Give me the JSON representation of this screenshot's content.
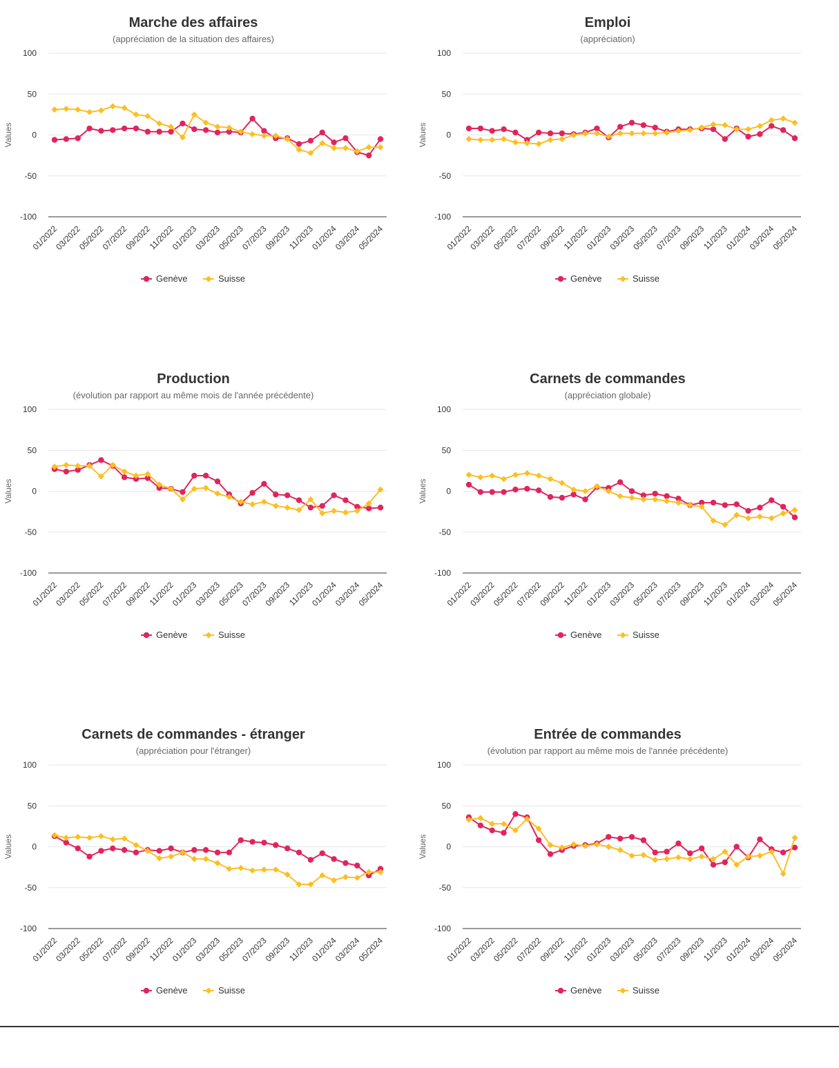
{
  "ylabel": "Values",
  "colors": {
    "geneve": "#e0245e",
    "suisse": "#fbbf24"
  },
  "chart_data": [
    {
      "type": "line",
      "title": "Marche des affaires",
      "subtitle": "(appréciation de la situation des affaires)",
      "ylabel": "Values",
      "ylim": [
        -100,
        100
      ],
      "yticks": [
        100,
        50,
        0,
        -50,
        -100
      ],
      "x": [
        "01/2022",
        "02/2022",
        "03/2022",
        "04/2022",
        "05/2022",
        "06/2022",
        "07/2022",
        "08/2022",
        "09/2022",
        "10/2022",
        "11/2022",
        "12/2022",
        "01/2023",
        "02/2023",
        "03/2023",
        "04/2023",
        "05/2023",
        "06/2023",
        "07/2023",
        "08/2023",
        "09/2023",
        "10/2023",
        "11/2023",
        "12/2023",
        "01/2024",
        "02/2024",
        "03/2024",
        "04/2024",
        "05/2024"
      ],
      "xticks": [
        "01/2022",
        "03/2022",
        "05/2022",
        "07/2022",
        "09/2022",
        "11/2022",
        "01/2023",
        "03/2023",
        "05/2023",
        "07/2023",
        "09/2023",
        "11/2023",
        "01/2024",
        "03/2024",
        "05/2024"
      ],
      "legend_position": "bottom",
      "series": [
        {
          "name": "Genève",
          "marker": "circle",
          "values": [
            -6,
            -5,
            -4,
            8,
            5,
            6,
            8,
            8,
            4,
            4,
            4,
            14,
            7,
            6,
            3,
            4,
            3,
            20,
            5,
            -4,
            -4,
            -11,
            -7,
            3,
            -9,
            -4,
            -21,
            -25,
            -5
          ]
        },
        {
          "name": "Suisse",
          "marker": "diamond",
          "values": [
            31,
            32,
            31,
            28,
            30,
            35,
            33,
            25,
            23,
            14,
            10,
            -3,
            25,
            15,
            10,
            9,
            4,
            1,
            -1,
            -1,
            -5,
            -18,
            -22,
            -10,
            -16,
            -16,
            -20,
            -15,
            -15
          ]
        }
      ]
    },
    {
      "type": "line",
      "title": "Emploi",
      "subtitle": "(appréciation)",
      "ylabel": "Values",
      "ylim": [
        -100,
        100
      ],
      "yticks": [
        100,
        50,
        0,
        -50,
        -100
      ],
      "x": [
        "01/2022",
        "02/2022",
        "03/2022",
        "04/2022",
        "05/2022",
        "06/2022",
        "07/2022",
        "08/2022",
        "09/2022",
        "10/2022",
        "11/2022",
        "12/2022",
        "01/2023",
        "02/2023",
        "03/2023",
        "04/2023",
        "05/2023",
        "06/2023",
        "07/2023",
        "08/2023",
        "09/2023",
        "10/2023",
        "11/2023",
        "12/2023",
        "01/2024",
        "02/2024",
        "03/2024",
        "04/2024",
        "05/2024"
      ],
      "xticks": [
        "01/2022",
        "03/2022",
        "05/2022",
        "07/2022",
        "09/2022",
        "11/2022",
        "01/2023",
        "03/2023",
        "05/2023",
        "07/2023",
        "09/2023",
        "11/2023",
        "01/2024",
        "03/2024",
        "05/2024"
      ],
      "legend_position": "bottom",
      "series": [
        {
          "name": "Genève",
          "marker": "circle",
          "values": [
            8,
            8,
            5,
            7,
            3,
            -6,
            3,
            2,
            2,
            1,
            3,
            8,
            -3,
            10,
            15,
            12,
            9,
            4,
            7,
            7,
            8,
            7,
            -5,
            8,
            -2,
            1,
            11,
            6,
            -4
          ]
        },
        {
          "name": "Suisse",
          "marker": "diamond",
          "values": [
            -5,
            -6,
            -6,
            -5,
            -9,
            -10,
            -11,
            -6,
            -5,
            0,
            2,
            2,
            -2,
            2,
            2,
            2,
            2,
            3,
            5,
            6,
            9,
            13,
            12,
            7,
            7,
            11,
            18,
            20,
            15
          ]
        }
      ]
    },
    {
      "type": "line",
      "title": "Production",
      "subtitle": "(évolution par rapport au même mois de l'année précédente)",
      "ylabel": "Values",
      "ylim": [
        -100,
        100
      ],
      "yticks": [
        100,
        50,
        0,
        -50,
        -100
      ],
      "x": [
        "01/2022",
        "02/2022",
        "03/2022",
        "04/2022",
        "05/2022",
        "06/2022",
        "07/2022",
        "08/2022",
        "09/2022",
        "10/2022",
        "11/2022",
        "12/2022",
        "01/2023",
        "02/2023",
        "03/2023",
        "04/2023",
        "05/2023",
        "06/2023",
        "07/2023",
        "08/2023",
        "09/2023",
        "10/2023",
        "11/2023",
        "12/2023",
        "01/2024",
        "02/2024",
        "03/2024",
        "04/2024",
        "05/2024"
      ],
      "xticks": [
        "01/2022",
        "03/2022",
        "05/2022",
        "07/2022",
        "09/2022",
        "11/2022",
        "01/2023",
        "03/2023",
        "05/2023",
        "07/2023",
        "09/2023",
        "11/2023",
        "01/2024",
        "03/2024",
        "05/2024"
      ],
      "legend_position": "bottom",
      "series": [
        {
          "name": "Genève",
          "marker": "circle",
          "values": [
            27,
            24,
            26,
            32,
            38,
            31,
            17,
            15,
            16,
            4,
            3,
            -1,
            19,
            19,
            12,
            -4,
            -15,
            -2,
            9,
            -4,
            -5,
            -11,
            -20,
            -18,
            -5,
            -11,
            -19,
            -21,
            -20
          ]
        },
        {
          "name": "Suisse",
          "marker": "diamond",
          "values": [
            30,
            32,
            31,
            31,
            18,
            32,
            24,
            19,
            21,
            8,
            3,
            -10,
            3,
            4,
            -3,
            -7,
            -13,
            -16,
            -13,
            -18,
            -20,
            -23,
            -10,
            -27,
            -24,
            -26,
            -24,
            -15,
            2
          ]
        }
      ]
    },
    {
      "type": "line",
      "title": "Carnets de commandes",
      "subtitle": "(appréciation globale)",
      "ylabel": "Values",
      "ylim": [
        -100,
        100
      ],
      "yticks": [
        100,
        50,
        0,
        -50,
        -100
      ],
      "x": [
        "01/2022",
        "02/2022",
        "03/2022",
        "04/2022",
        "05/2022",
        "06/2022",
        "07/2022",
        "08/2022",
        "09/2022",
        "10/2022",
        "11/2022",
        "12/2022",
        "01/2023",
        "02/2023",
        "03/2023",
        "04/2023",
        "05/2023",
        "06/2023",
        "07/2023",
        "08/2023",
        "09/2023",
        "10/2023",
        "11/2023",
        "12/2023",
        "01/2024",
        "02/2024",
        "03/2024",
        "04/2024",
        "05/2024"
      ],
      "xticks": [
        "01/2022",
        "03/2022",
        "05/2022",
        "07/2022",
        "09/2022",
        "11/2022",
        "01/2023",
        "03/2023",
        "05/2023",
        "07/2023",
        "09/2023",
        "11/2023",
        "01/2024",
        "03/2024",
        "05/2024"
      ],
      "legend_position": "bottom",
      "series": [
        {
          "name": "Genève",
          "marker": "circle",
          "values": [
            8,
            -1,
            -1,
            -1,
            2,
            3,
            1,
            -7,
            -8,
            -4,
            -10,
            5,
            4,
            11,
            0,
            -5,
            -3,
            -6,
            -9,
            -17,
            -14,
            -14,
            -17,
            -16,
            -24,
            -20,
            -11,
            -19,
            -32
          ]
        },
        {
          "name": "Suisse",
          "marker": "diamond",
          "values": [
            20,
            17,
            19,
            15,
            20,
            22,
            19,
            15,
            10,
            2,
            0,
            6,
            0,
            -6,
            -8,
            -10,
            -10,
            -12,
            -14,
            -17,
            -19,
            -36,
            -41,
            -29,
            -33,
            -31,
            -33,
            -27,
            -23
          ]
        }
      ]
    },
    {
      "type": "line",
      "title": "Carnets de commandes - étranger",
      "subtitle": "(appréciation pour l'étranger)",
      "ylabel": "Values",
      "ylim": [
        -100,
        100
      ],
      "yticks": [
        100,
        50,
        0,
        -50,
        -100
      ],
      "x": [
        "01/2022",
        "02/2022",
        "03/2022",
        "04/2022",
        "05/2022",
        "06/2022",
        "07/2022",
        "08/2022",
        "09/2022",
        "10/2022",
        "11/2022",
        "12/2022",
        "01/2023",
        "02/2023",
        "03/2023",
        "04/2023",
        "05/2023",
        "06/2023",
        "07/2023",
        "08/2023",
        "09/2023",
        "10/2023",
        "11/2023",
        "12/2023",
        "01/2024",
        "02/2024",
        "03/2024",
        "04/2024",
        "05/2024"
      ],
      "xticks": [
        "01/2022",
        "03/2022",
        "05/2022",
        "07/2022",
        "09/2022",
        "11/2022",
        "01/2023",
        "03/2023",
        "05/2023",
        "07/2023",
        "09/2023",
        "11/2023",
        "01/2024",
        "03/2024",
        "05/2024"
      ],
      "legend_position": "bottom",
      "series": [
        {
          "name": "Genève",
          "marker": "circle",
          "values": [
            13,
            5,
            -2,
            -12,
            -5,
            -2,
            -4,
            -7,
            -4,
            -5,
            -2,
            -7,
            -4,
            -4,
            -7,
            -7,
            8,
            6,
            5,
            2,
            -2,
            -7,
            -16,
            -8,
            -15,
            -20,
            -23,
            -35,
            -27
          ]
        },
        {
          "name": "Suisse",
          "marker": "diamond",
          "values": [
            14,
            11,
            12,
            11,
            13,
            9,
            10,
            2,
            -5,
            -14,
            -12,
            -7,
            -15,
            -15,
            -20,
            -27,
            -26,
            -29,
            -28,
            -28,
            -34,
            -46,
            -46,
            -35,
            -41,
            -37,
            -38,
            -31,
            -31
          ]
        }
      ]
    },
    {
      "type": "line",
      "title": "Entrée de commandes",
      "subtitle": "(évolution par rapport au même mois de l'année précédente)",
      "ylabel": "Values",
      "ylim": [
        -100,
        100
      ],
      "yticks": [
        100,
        50,
        0,
        -50,
        -100
      ],
      "x": [
        "01/2022",
        "02/2022",
        "03/2022",
        "04/2022",
        "05/2022",
        "06/2022",
        "07/2022",
        "08/2022",
        "09/2022",
        "10/2022",
        "11/2022",
        "12/2022",
        "01/2023",
        "02/2023",
        "03/2023",
        "04/2023",
        "05/2023",
        "06/2023",
        "07/2023",
        "08/2023",
        "09/2023",
        "10/2023",
        "11/2023",
        "12/2023",
        "01/2024",
        "02/2024",
        "03/2024",
        "04/2024",
        "05/2024"
      ],
      "xticks": [
        "01/2022",
        "03/2022",
        "05/2022",
        "07/2022",
        "09/2022",
        "11/2022",
        "01/2023",
        "03/2023",
        "05/2023",
        "07/2023",
        "09/2023",
        "11/2023",
        "01/2024",
        "03/2024",
        "05/2024"
      ],
      "legend_position": "bottom",
      "series": [
        {
          "name": "Genève",
          "marker": "circle",
          "values": [
            36,
            26,
            20,
            17,
            40,
            36,
            8,
            -9,
            -4,
            1,
            2,
            4,
            12,
            10,
            12,
            8,
            -7,
            -6,
            4,
            -8,
            -2,
            -22,
            -19,
            0,
            -13,
            9,
            -3,
            -7,
            -1
          ]
        },
        {
          "name": "Suisse",
          "marker": "diamond",
          "values": [
            33,
            35,
            28,
            28,
            20,
            34,
            22,
            2,
            -1,
            3,
            1,
            3,
            0,
            -4,
            -11,
            -10,
            -16,
            -15,
            -13,
            -15,
            -12,
            -15,
            -6,
            -22,
            -12,
            -11,
            -6,
            -33,
            11
          ]
        }
      ]
    }
  ]
}
